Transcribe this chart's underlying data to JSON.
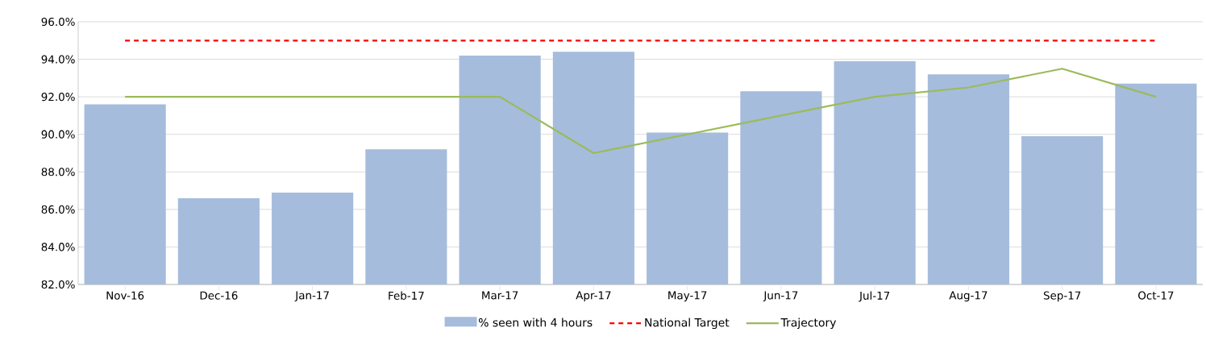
{
  "chart_data": {
    "type": "bar",
    "categories": [
      "Nov-16",
      "Dec-16",
      "Jan-17",
      "Feb-17",
      "Mar-17",
      "Apr-17",
      "May-17",
      "Jun-17",
      "Jul-17",
      "Aug-17",
      "Sep-17",
      "Oct-17"
    ],
    "series": [
      {
        "name": "% seen with 4 hours",
        "type": "bar",
        "color": "#a5bcdc",
        "values": [
          91.6,
          86.6,
          86.9,
          89.2,
          94.2,
          94.4,
          90.1,
          92.3,
          93.9,
          93.2,
          89.9,
          92.7
        ]
      },
      {
        "name": "National Target",
        "type": "line",
        "color": "#ff0000",
        "line_style": "dashed",
        "values": [
          95,
          95,
          95,
          95,
          95,
          95,
          95,
          95,
          95,
          95,
          95,
          95
        ]
      },
      {
        "name": "Trajectory",
        "type": "line",
        "color": "#9bbb59",
        "line_style": "solid",
        "values": [
          92,
          92,
          92,
          92,
          92,
          89,
          90,
          91,
          92,
          92.5,
          93.5,
          92
        ]
      }
    ],
    "ylim": [
      82,
      96
    ],
    "yticks": [
      {
        "value": 82,
        "label": "82.0%"
      },
      {
        "value": 84,
        "label": "84.0%"
      },
      {
        "value": 86,
        "label": "86.0%"
      },
      {
        "value": 88,
        "label": "88.0%"
      },
      {
        "value": 90,
        "label": "90.0%"
      },
      {
        "value": 92,
        "label": "92.0%"
      },
      {
        "value": 94,
        "label": "94.0%"
      },
      {
        "value": 96,
        "label": "96.0%"
      }
    ],
    "grid": "y",
    "legend": "bottom",
    "marker": "none"
  }
}
